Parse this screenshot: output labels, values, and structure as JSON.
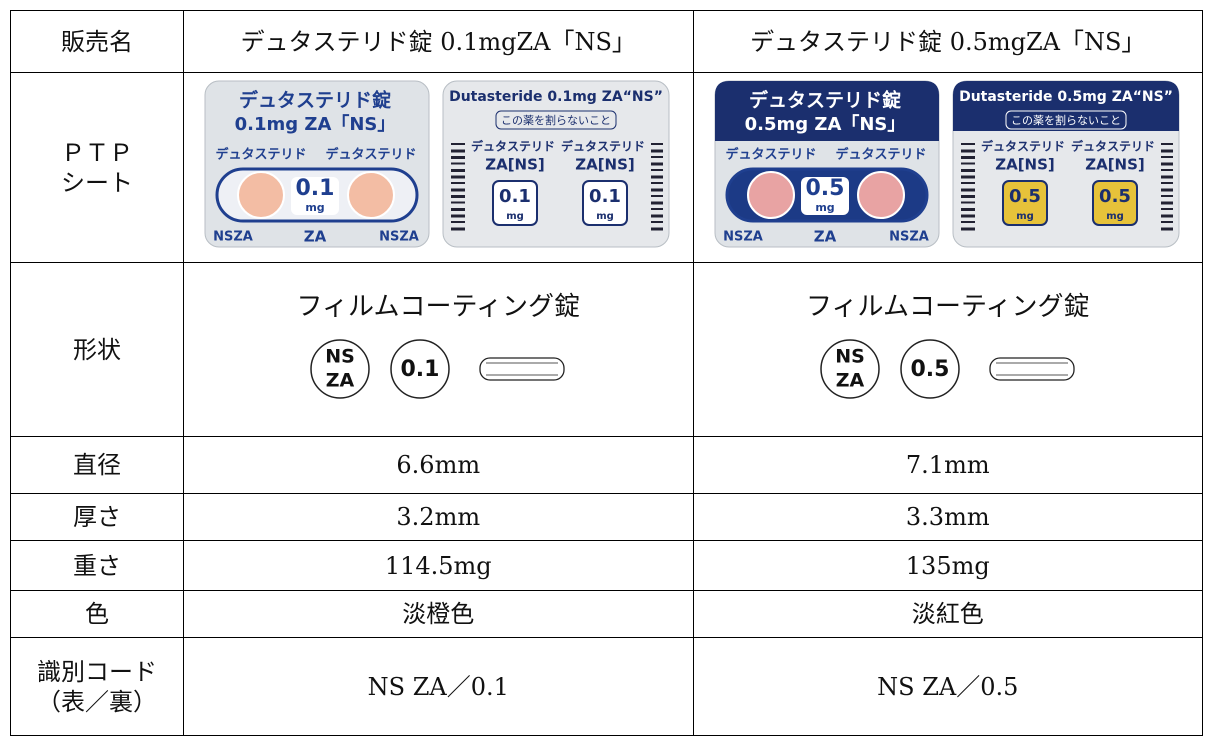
{
  "table": {
    "header": [
      "販売名",
      "デュタステリド錠 0.1mgZA「NS」",
      "デュタステリド錠 0.5mgZA「NS」"
    ],
    "ptp": {
      "label": [
        "ＰＴＰ",
        "シート"
      ],
      "sheets": [
        {
          "brand": "デュタステリド錠",
          "dose": "0.1mg ZA「NS」",
          "name": "デュタステリド",
          "strength": "0.1",
          "unit": "mg",
          "code": "NSZA",
          "mark": "ZA",
          "back_title": "Dutasteride 0.1mg ZA“NS”",
          "caution": "この薬を割らないこと",
          "back_name": "ZA[NS]"
        },
        {
          "brand": "デュタステリド錠",
          "dose": "0.5mg ZA「NS」",
          "name": "デュタステリド",
          "strength": "0.5",
          "unit": "mg",
          "code": "NSZA",
          "mark": "ZA",
          "back_title": "Dutasteride 0.5mg ZA“NS”",
          "caution": "この薬を割らないこと",
          "back_name": "ZA[NS]"
        }
      ]
    },
    "shape": {
      "label": "形状",
      "cells": [
        {
          "form": "フィルムコーティング錠",
          "imprint": [
            "NS",
            "ZA"
          ],
          "strength": "0.1"
        },
        {
          "form": "フィルムコーティング錠",
          "imprint": [
            "NS",
            "ZA"
          ],
          "strength": "0.5"
        }
      ]
    },
    "rows": [
      {
        "label": [
          "直径"
        ],
        "cells": [
          "6.6mm",
          "7.1mm"
        ]
      },
      {
        "label": [
          "厚さ"
        ],
        "cells": [
          "3.2mm",
          "3.3mm"
        ]
      },
      {
        "label": [
          "重さ"
        ],
        "cells": [
          "114.5mg",
          "135mg"
        ]
      },
      {
        "label": [
          "色"
        ],
        "cells": [
          "淡橙色",
          "淡紅色"
        ]
      },
      {
        "label": [
          "識別コード",
          "（表／裏）"
        ],
        "cells": [
          "NS ZA／0.1",
          "NS ZA／0.5"
        ]
      }
    ]
  }
}
